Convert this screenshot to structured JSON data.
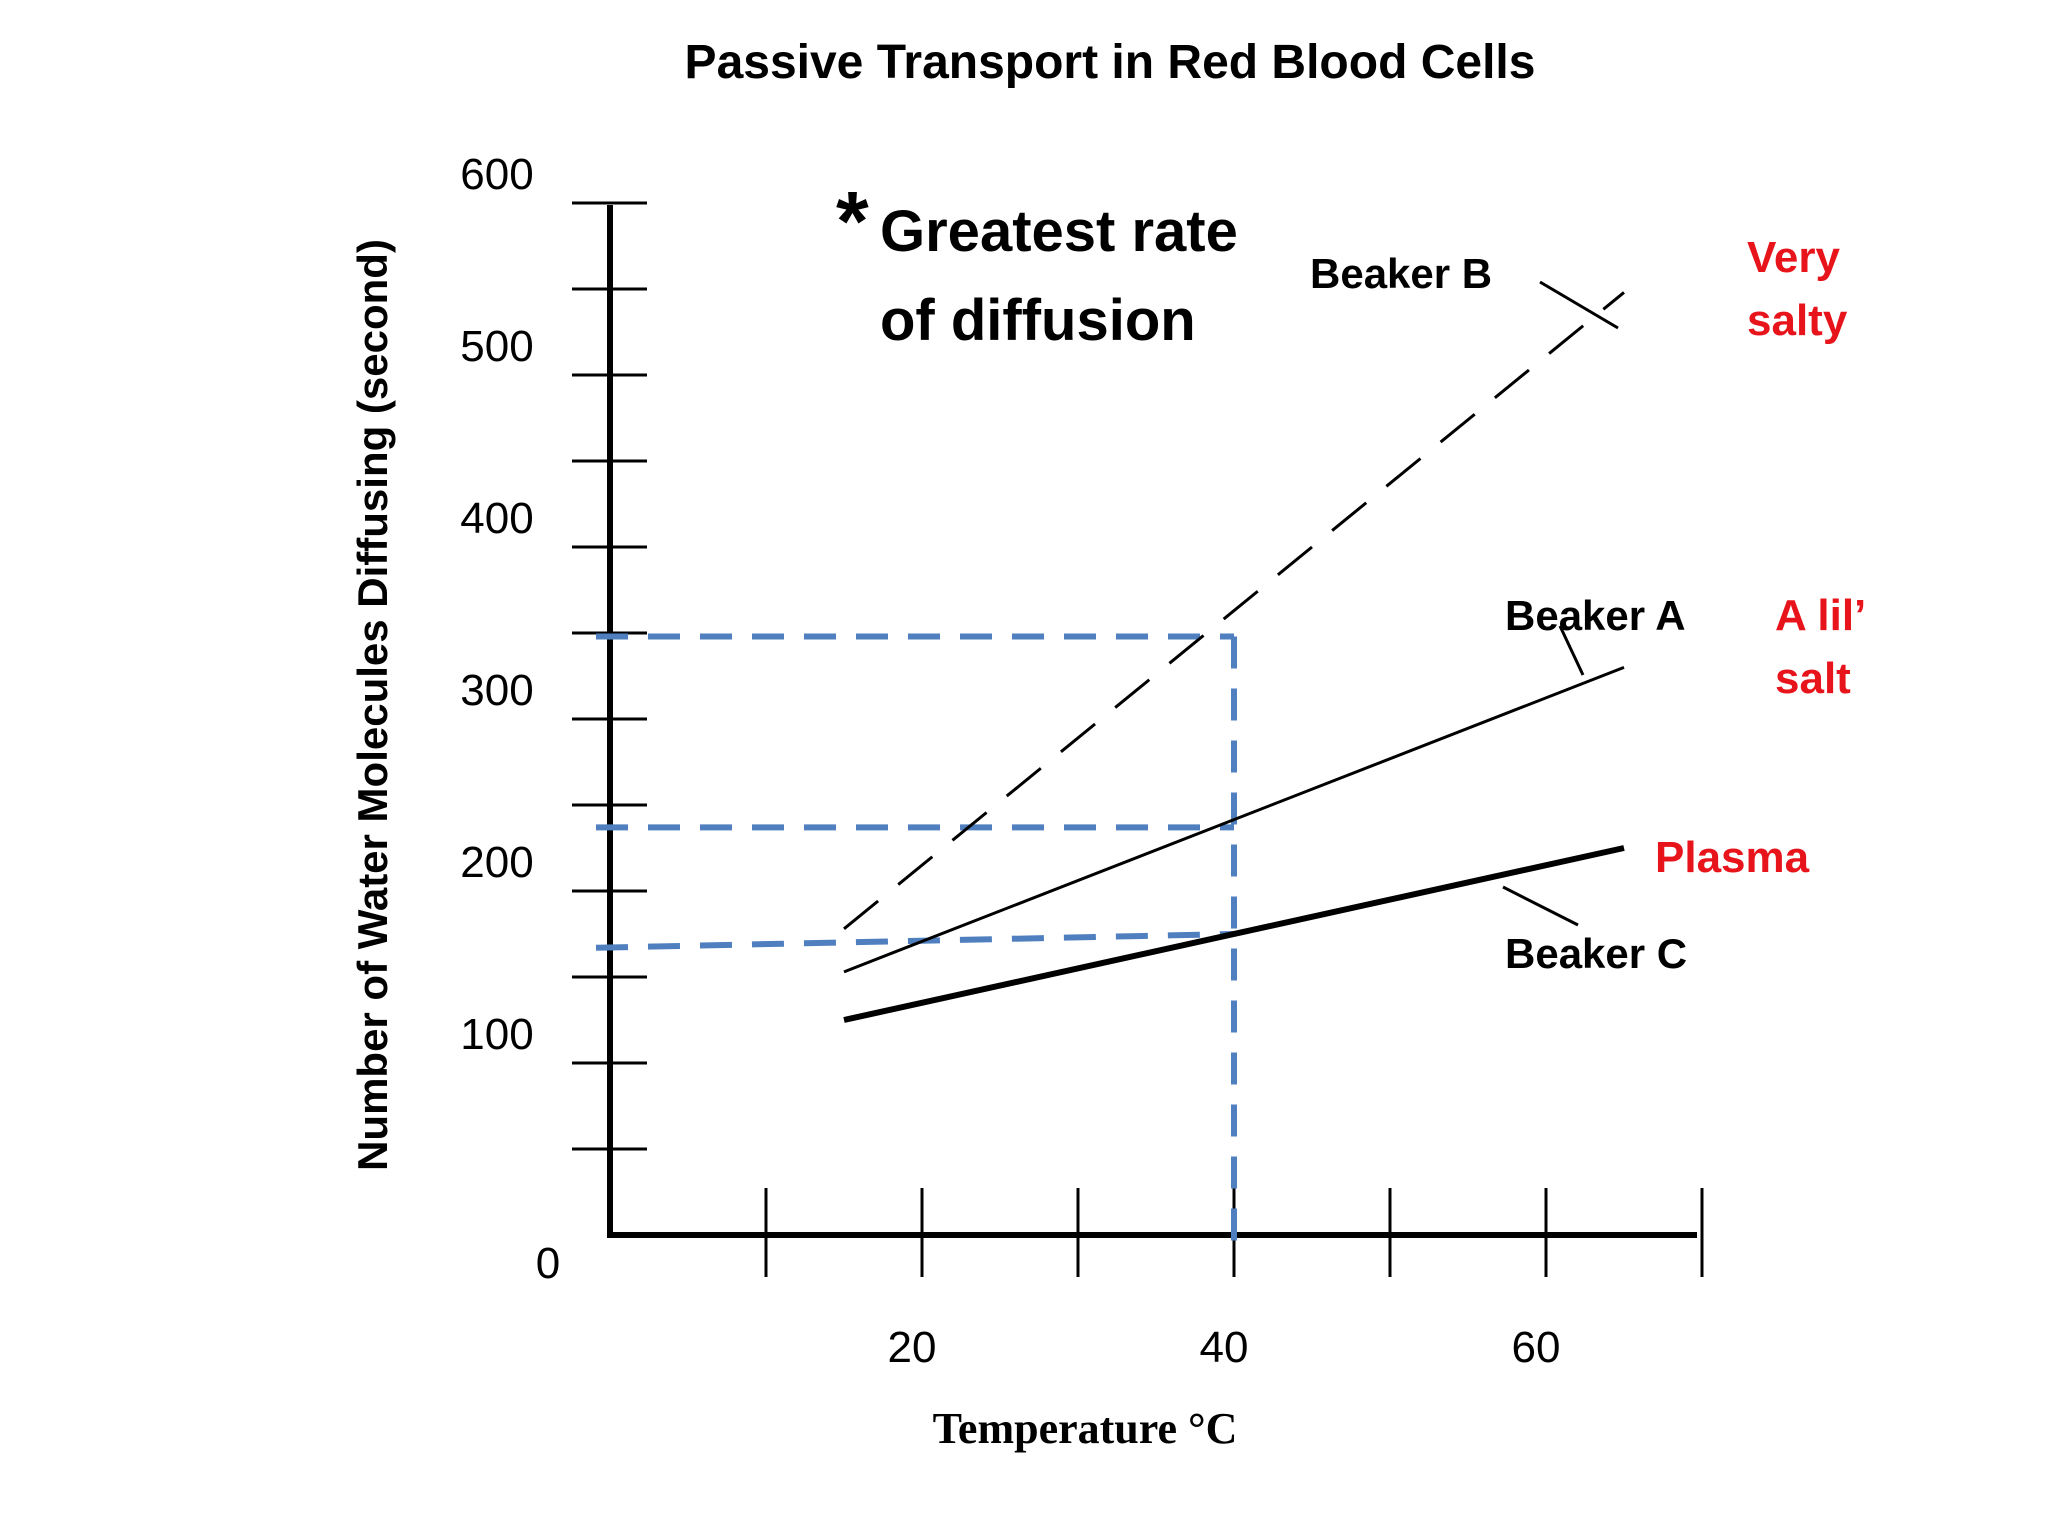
{
  "chart_data": {
    "type": "line",
    "title": "Passive Transport in Red Blood Cells",
    "xlabel": "Temperature °C",
    "ylabel": "Number of Water Molecules Diffusing (second)",
    "xlim": [
      0,
      70
    ],
    "ylim": [
      0,
      600
    ],
    "x_ticks": [
      10,
      20,
      30,
      40,
      50,
      60,
      70
    ],
    "x_tick_labels": [
      {
        "value": 20,
        "label": "20"
      },
      {
        "value": 40,
        "label": "40"
      },
      {
        "value": 60,
        "label": "60"
      }
    ],
    "y_ticks": [
      50,
      100,
      150,
      200,
      250,
      300,
      350,
      400,
      450,
      500,
      550,
      600
    ],
    "y_tick_labels": [
      {
        "value": 0,
        "label": "0"
      },
      {
        "value": 100,
        "label": "100"
      },
      {
        "value": 200,
        "label": "200"
      },
      {
        "value": 300,
        "label": "300"
      },
      {
        "value": 400,
        "label": "400"
      },
      {
        "value": 500,
        "label": "500"
      },
      {
        "value": 600,
        "label": "600"
      }
    ],
    "grid": false,
    "legend": "none",
    "series": [
      {
        "name": "Beaker B",
        "style": "dashed",
        "color": "#000000",
        "x": [
          15,
          65
        ],
        "y": [
          178,
          548
        ]
      },
      {
        "name": "Beaker A",
        "style": "thin",
        "color": "#000000",
        "x": [
          15,
          65
        ],
        "y": [
          153,
          330
        ]
      },
      {
        "name": "Beaker C",
        "style": "thick",
        "color": "#000000",
        "x": [
          15,
          65
        ],
        "y": [
          125,
          225
        ]
      }
    ],
    "reference_lines": {
      "color": "#4f7fbf",
      "x": 40,
      "y_levels": [
        348,
        237,
        175
      ],
      "y_start_for_c": 167
    },
    "annotations": {
      "star": "*",
      "note_line1": "Greatest rate",
      "note_line2": "of diffusion",
      "very_salty_line1": "Very",
      "very_salty_line2": "salty",
      "a_lil_salt_line1": "A lil’",
      "a_lil_salt_line2": "salt",
      "plasma": "Plasma"
    }
  }
}
